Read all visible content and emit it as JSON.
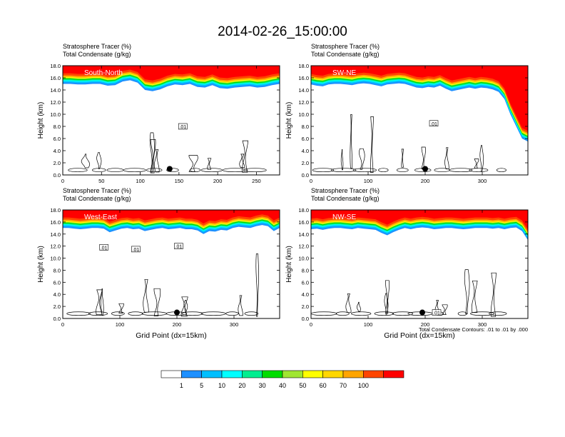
{
  "title": "2014-02-26_15:00:00",
  "colorbar": {
    "labels": [
      "1",
      "5",
      "10",
      "20",
      "30",
      "40",
      "50",
      "60",
      "70",
      "100"
    ],
    "colors": [
      "#ffffff",
      "#1e90ff",
      "#00bfff",
      "#00ffff",
      "#00ee90",
      "#00dd00",
      "#a0e632",
      "#ffff00",
      "#ffd700",
      "#ffa500",
      "#ff4500",
      "#ff0000"
    ]
  },
  "chart_data": [
    {
      "type": "contour",
      "panel": "South-North",
      "header": [
        "Stratosphere Tracer   (%)",
        "Total Condensate   (g/kg)"
      ],
      "ylabel": "Height (km)",
      "xlabel": "",
      "xlim": [
        0,
        280
      ],
      "ylim": [
        0,
        18
      ],
      "xticks": [
        0,
        50,
        100,
        150,
        200,
        250
      ],
      "yticks": [
        "0.0",
        "2.0",
        "4.0",
        "6.0",
        "8.0",
        "10.0",
        "12.0",
        "14.0",
        "16.0",
        "18.0"
      ],
      "tracer_base_km": [
        15.0,
        15.0,
        14.9,
        14.9,
        15.0,
        15.0,
        14.7,
        14.8,
        15.4,
        15.6,
        15.2,
        14.0,
        13.8,
        14.1,
        14.6,
        14.9,
        14.8,
        15.0,
        14.5,
        14.4,
        14.8,
        14.3,
        14.2,
        14.4,
        14.5,
        14.6,
        14.4,
        14.5,
        14.8,
        15.0
      ],
      "contour_labels": [
        {
          "x": 155,
          "y": 8.0,
          "text": ".01"
        }
      ],
      "marker": {
        "x": 138,
        "y": 1.0
      },
      "footnote": ""
    },
    {
      "type": "contour",
      "panel": "SW-NE",
      "header": [
        "Stratosphere Tracer   (%)",
        "Total Condensate   (g/kg)"
      ],
      "ylabel": "Height (km)",
      "xlabel": "",
      "xlim": [
        0,
        380
      ],
      "ylim": [
        0,
        18
      ],
      "xticks": [
        0,
        100,
        200,
        300
      ],
      "yticks": [
        "0.0",
        "2.0",
        "4.0",
        "6.0",
        "8.0",
        "10.0",
        "12.0",
        "14.0",
        "16.0",
        "18.0"
      ],
      "tracer_base_km": [
        14.9,
        14.7,
        14.6,
        14.9,
        15.0,
        15.0,
        14.9,
        14.8,
        15.0,
        15.1,
        15.0,
        14.8,
        14.6,
        14.9,
        15.0,
        15.1,
        15.0,
        14.7,
        14.4,
        14.3,
        14.5,
        14.4,
        14.7,
        14.2,
        13.8,
        14.0,
        14.2,
        14.4,
        14.2,
        14.4,
        14.3,
        14.1,
        13.7,
        12.5,
        10.0,
        8.0,
        6.0,
        5.5
      ],
      "contour_labels": [
        {
          "x": 215,
          "y": 8.5,
          "text": ".01"
        }
      ],
      "marker": {
        "x": 200,
        "y": 1.0
      },
      "footnote": ""
    },
    {
      "type": "contour",
      "panel": "West-East",
      "header": [
        "Stratosphere Tracer   (%)",
        "Total Condensate   (g/kg)"
      ],
      "ylabel": "Height (km)",
      "xlabel": "Grid Point (dx=15km)",
      "xlim": [
        0,
        380
      ],
      "ylim": [
        0,
        18
      ],
      "xticks": [
        0,
        100,
        200,
        300
      ],
      "yticks": [
        "0.0",
        "2.0",
        "4.0",
        "6.0",
        "8.0",
        "10.0",
        "12.0",
        "14.0",
        "16.0",
        "18.0"
      ],
      "tracer_base_km": [
        15.0,
        15.0,
        14.9,
        14.8,
        14.9,
        15.0,
        15.0,
        14.9,
        14.3,
        14.6,
        14.9,
        15.0,
        14.8,
        14.9,
        14.5,
        14.7,
        14.9,
        15.0,
        14.8,
        14.9,
        15.0,
        14.8,
        14.8,
        14.6,
        14.0,
        14.5,
        14.4,
        14.7,
        14.6,
        15.0,
        15.2,
        15.1,
        15.0,
        15.3,
        15.5,
        15.3,
        14.5,
        15.0
      ],
      "contour_labels": [
        {
          "x": 72,
          "y": 11.8,
          "text": ".01"
        },
        {
          "x": 128,
          "y": 11.5,
          "text": ".01"
        },
        {
          "x": 203,
          "y": 12.0,
          "text": ".01"
        }
      ],
      "marker": {
        "x": 200,
        "y": 1.0
      },
      "footnote": ""
    },
    {
      "type": "contour",
      "panel": "NW-SE",
      "header": [
        "Stratosphere Tracer   (%)",
        "Total Condensate   (g/kg)"
      ],
      "ylabel": "Height (km)",
      "xlabel": "Grid Point (dx=15km)",
      "xlim": [
        0,
        380
      ],
      "ylim": [
        0,
        18
      ],
      "xticks": [
        0,
        100,
        200,
        300
      ],
      "yticks": [
        "0.0",
        "2.0",
        "4.0",
        "6.0",
        "8.0",
        "10.0",
        "12.0",
        "14.0",
        "16.0",
        "18.0"
      ],
      "tracer_base_km": [
        14.8,
        14.9,
        14.7,
        14.9,
        15.0,
        15.0,
        14.9,
        14.8,
        15.0,
        14.9,
        14.8,
        14.7,
        14.2,
        13.8,
        14.3,
        14.7,
        15.0,
        14.8,
        15.0,
        15.1,
        15.0,
        14.8,
        14.9,
        15.0,
        15.0,
        14.9,
        14.8,
        14.9,
        15.0,
        15.0,
        15.0,
        14.9,
        15.0,
        14.8,
        15.0,
        15.1,
        14.5,
        13.0
      ],
      "contour_labels": [
        {
          "x": 220,
          "y": 1.0,
          "text": ".01"
        }
      ],
      "marker": {
        "x": 195,
        "y": 1.0
      },
      "footnote": "Total Condensate Contours: .01 to .01 by .000"
    }
  ]
}
